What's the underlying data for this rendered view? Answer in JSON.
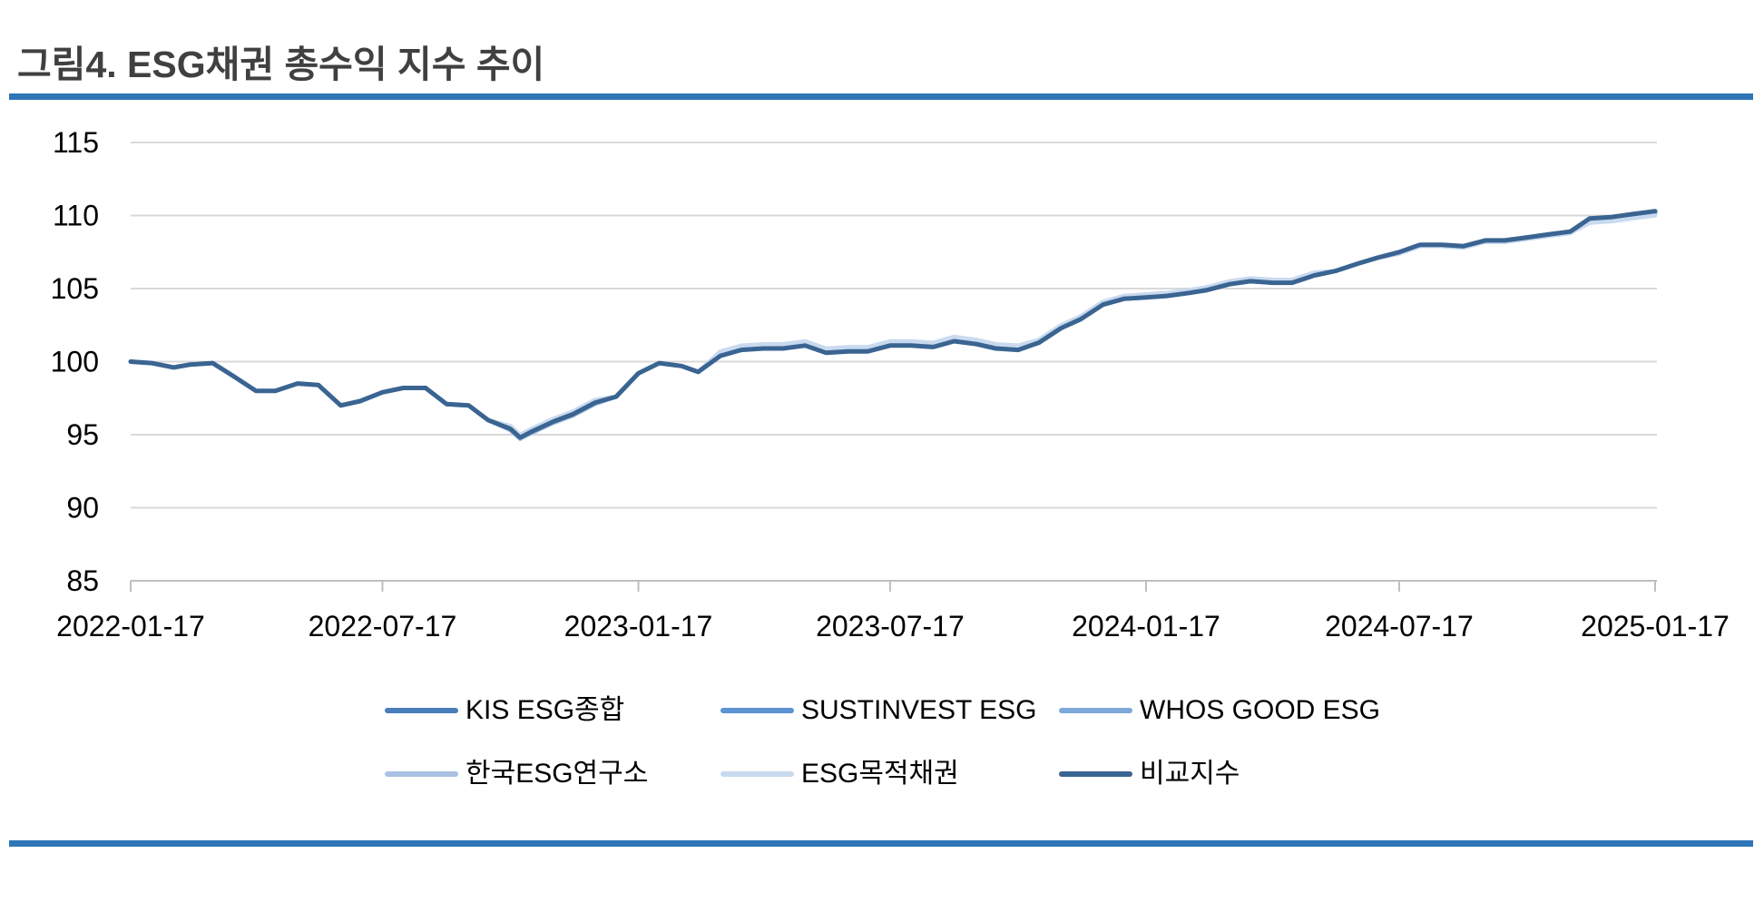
{
  "chart_data": {
    "type": "line",
    "title": "그림4. ESG채권 총수익 지수 추이",
    "x": [
      "2022-01-17",
      "2022-02-01",
      "2022-02-17",
      "2022-03-01",
      "2022-03-17",
      "2022-04-01",
      "2022-04-17",
      "2022-05-01",
      "2022-05-17",
      "2022-06-01",
      "2022-06-17",
      "2022-07-01",
      "2022-07-17",
      "2022-08-01",
      "2022-08-17",
      "2022-09-01",
      "2022-09-17",
      "2022-10-01",
      "2022-10-17",
      "2022-10-24",
      "2022-11-01",
      "2022-11-17",
      "2022-12-01",
      "2022-12-17",
      "2023-01-01",
      "2023-01-17",
      "2023-02-01",
      "2023-02-17",
      "2023-03-01",
      "2023-03-17",
      "2023-04-01",
      "2023-04-17",
      "2023-05-01",
      "2023-05-17",
      "2023-06-01",
      "2023-06-17",
      "2023-07-01",
      "2023-07-17",
      "2023-08-01",
      "2023-08-17",
      "2023-09-01",
      "2023-09-17",
      "2023-10-01",
      "2023-10-17",
      "2023-11-01",
      "2023-11-17",
      "2023-12-01",
      "2023-12-17",
      "2024-01-01",
      "2024-01-17",
      "2024-02-01",
      "2024-02-17",
      "2024-03-01",
      "2024-03-17",
      "2024-04-01",
      "2024-04-17",
      "2024-05-01",
      "2024-05-17",
      "2024-06-01",
      "2024-06-17",
      "2024-07-01",
      "2024-07-17",
      "2024-08-01",
      "2024-08-17",
      "2024-09-01",
      "2024-09-17",
      "2024-10-01",
      "2024-10-17",
      "2024-11-01",
      "2024-11-17",
      "2024-12-01",
      "2024-12-17",
      "2025-01-01",
      "2025-01-17"
    ],
    "series": [
      {
        "name": "KIS ESG종합",
        "color": "#4A7EBB",
        "values": [
          100.0,
          99.9,
          99.6,
          99.8,
          99.9,
          99.0,
          98.0,
          98.0,
          98.5,
          98.4,
          97.0,
          97.3,
          97.9,
          98.2,
          98.2,
          97.1,
          97.0,
          96.0,
          95.4,
          94.8,
          95.2,
          95.9,
          96.4,
          97.2,
          97.6,
          99.2,
          99.9,
          99.7,
          99.3,
          100.5,
          100.9,
          101.0,
          101.0,
          101.2,
          100.7,
          100.8,
          100.8,
          101.2,
          101.2,
          101.1,
          101.5,
          101.3,
          101.0,
          100.9,
          101.3,
          102.3,
          102.9,
          103.9,
          104.3,
          104.4,
          104.5,
          104.7,
          104.9,
          105.3,
          105.5,
          105.4,
          105.4,
          105.9,
          106.2,
          106.7,
          107.1,
          107.5,
          108.0,
          108.0,
          107.9,
          108.3,
          108.3,
          108.5,
          108.7,
          108.9,
          109.7,
          109.8,
          110.0,
          110.2
        ]
      },
      {
        "name": "SUSTINVEST ESG",
        "color": "#5B93D3",
        "values": [
          100.0,
          99.9,
          99.6,
          99.8,
          99.9,
          99.0,
          98.0,
          98.0,
          98.5,
          98.4,
          97.0,
          97.3,
          97.9,
          98.2,
          98.2,
          97.1,
          97.0,
          96.0,
          95.5,
          94.9,
          95.3,
          96.0,
          96.5,
          97.3,
          97.6,
          99.2,
          99.9,
          99.7,
          99.3,
          100.5,
          100.9,
          101.0,
          101.0,
          101.2,
          100.7,
          100.8,
          100.8,
          101.2,
          101.2,
          101.1,
          101.5,
          101.3,
          101.0,
          100.9,
          101.3,
          102.3,
          102.9,
          103.9,
          104.3,
          104.4,
          104.5,
          104.7,
          104.9,
          105.3,
          105.5,
          105.4,
          105.4,
          105.9,
          106.2,
          106.7,
          107.1,
          107.5,
          108.0,
          108.0,
          107.9,
          108.3,
          108.3,
          108.5,
          108.7,
          108.9,
          109.7,
          109.8,
          110.0,
          110.1
        ]
      },
      {
        "name": "WHOS GOOD ESG",
        "color": "#7EA8DA",
        "values": [
          100.0,
          99.9,
          99.6,
          99.8,
          99.9,
          99.0,
          98.0,
          98.0,
          98.5,
          98.4,
          97.0,
          97.3,
          97.9,
          98.2,
          98.2,
          97.1,
          97.0,
          96.0,
          95.5,
          94.9,
          95.3,
          96.0,
          96.5,
          97.3,
          97.6,
          99.2,
          99.9,
          99.7,
          99.3,
          100.6,
          101.0,
          101.1,
          101.1,
          101.3,
          100.8,
          100.9,
          100.9,
          101.3,
          101.3,
          101.2,
          101.6,
          101.4,
          101.1,
          101.0,
          101.4,
          102.4,
          103.0,
          104.0,
          104.4,
          104.5,
          104.6,
          104.8,
          105.0,
          105.4,
          105.6,
          105.5,
          105.5,
          106.0,
          106.2,
          106.7,
          107.1,
          107.4,
          107.9,
          107.9,
          107.8,
          108.2,
          108.2,
          108.4,
          108.6,
          108.8,
          109.6,
          109.7,
          109.9,
          110.1
        ]
      },
      {
        "name": "한국ESG연구소",
        "color": "#A9C1E2",
        "values": [
          100.0,
          99.9,
          99.6,
          99.8,
          99.9,
          99.0,
          98.0,
          98.0,
          98.5,
          98.4,
          97.0,
          97.3,
          97.9,
          98.2,
          98.2,
          97.1,
          97.0,
          96.0,
          95.3,
          94.7,
          95.1,
          95.8,
          96.3,
          97.1,
          97.6,
          99.2,
          99.9,
          99.7,
          99.3,
          100.6,
          101.0,
          101.1,
          101.1,
          101.3,
          100.8,
          100.9,
          100.9,
          101.3,
          101.3,
          101.2,
          101.6,
          101.4,
          101.1,
          101.0,
          101.5,
          102.5,
          103.1,
          104.1,
          104.5,
          104.6,
          104.7,
          104.9,
          105.1,
          105.5,
          105.7,
          105.6,
          105.6,
          106.1,
          106.2,
          106.7,
          107.1,
          107.4,
          107.9,
          107.9,
          107.8,
          108.2,
          108.2,
          108.4,
          108.6,
          108.8,
          109.6,
          109.7,
          109.9,
          110.0
        ]
      },
      {
        "name": "ESG목적채권",
        "color": "#C9DAF0",
        "values": [
          100.0,
          99.9,
          99.6,
          99.8,
          99.9,
          99.0,
          98.0,
          98.0,
          98.5,
          98.4,
          97.0,
          97.3,
          97.9,
          98.2,
          98.2,
          97.1,
          97.0,
          96.0,
          95.6,
          95.0,
          95.4,
          96.1,
          96.6,
          97.4,
          97.6,
          99.2,
          99.9,
          99.7,
          99.3,
          100.7,
          101.1,
          101.2,
          101.2,
          101.4,
          100.9,
          101.0,
          101.0,
          101.4,
          101.4,
          101.3,
          101.7,
          101.5,
          101.2,
          101.1,
          101.5,
          102.5,
          103.1,
          104.1,
          104.5,
          104.6,
          104.7,
          104.9,
          105.1,
          105.5,
          105.7,
          105.6,
          105.6,
          106.1,
          106.2,
          106.7,
          107.1,
          107.4,
          107.9,
          107.9,
          107.8,
          108.2,
          108.2,
          108.4,
          108.6,
          108.8,
          109.5,
          109.6,
          109.8,
          110.0
        ]
      },
      {
        "name": "비교지수",
        "color": "#3A6491",
        "values": [
          100.0,
          99.9,
          99.6,
          99.8,
          99.9,
          99.0,
          98.0,
          98.0,
          98.5,
          98.4,
          97.0,
          97.3,
          97.9,
          98.2,
          98.2,
          97.1,
          97.0,
          96.0,
          95.4,
          94.8,
          95.2,
          95.9,
          96.4,
          97.2,
          97.6,
          99.2,
          99.9,
          99.7,
          99.3,
          100.4,
          100.8,
          100.9,
          100.9,
          101.1,
          100.6,
          100.7,
          100.7,
          101.1,
          101.1,
          101.0,
          101.4,
          101.2,
          100.9,
          100.8,
          101.3,
          102.3,
          102.9,
          103.9,
          104.3,
          104.4,
          104.5,
          104.7,
          104.9,
          105.3,
          105.5,
          105.4,
          105.4,
          105.9,
          106.2,
          106.7,
          107.1,
          107.5,
          108.0,
          108.0,
          107.9,
          108.3,
          108.3,
          108.5,
          108.7,
          108.9,
          109.8,
          109.9,
          110.1,
          110.3
        ]
      }
    ],
    "xlim": [
      "2022-01-17",
      "2025-01-17"
    ],
    "xticks": [
      "2022-01-17",
      "2022-07-17",
      "2023-01-17",
      "2023-07-17",
      "2024-01-17",
      "2024-07-17",
      "2025-01-17"
    ],
    "ylim": [
      85,
      115
    ],
    "yticks": [
      115,
      110,
      105,
      100,
      95,
      90,
      85
    ],
    "grid": true,
    "legend_position": "bottom"
  },
  "colors": {
    "rule": "#2E75B6",
    "gridline": "#D9D9D9",
    "axis": "#BFBFBF",
    "title_text": "#404040"
  }
}
